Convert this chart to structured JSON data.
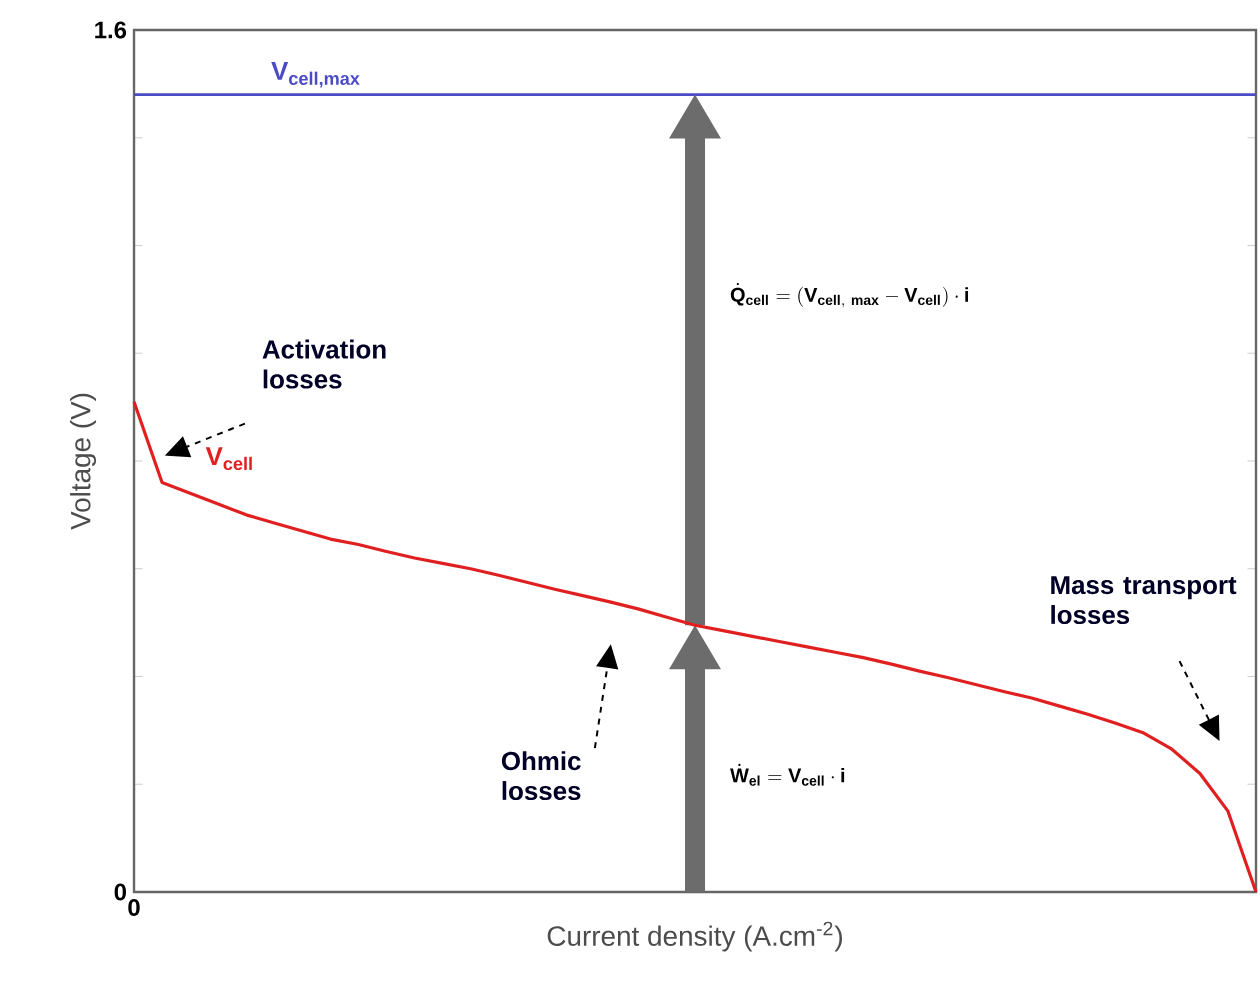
{
  "chart_data": {
    "type": "line",
    "xlabel": "Current density (A.cm$^{-2}$)",
    "ylabel": "Voltage (V)",
    "categories": [
      "0",
      null,
      null,
      null,
      null,
      null,
      null,
      null,
      null,
      null,
      null,
      null,
      null,
      null,
      null,
      null,
      null,
      null,
      null,
      null,
      null,
      null,
      null,
      null,
      null,
      null,
      null,
      null,
      null,
      null,
      null,
      null,
      null,
      null,
      null,
      null,
      null,
      null,
      null,
      null,
      null
    ],
    "ylim": [
      0,
      1.6
    ],
    "yticks": [
      0,
      {
        "value": 0.2,
        "label": null
      },
      {
        "value": 0.4,
        "label": null
      },
      {
        "value": 0.6,
        "label": null
      },
      {
        "value": 0.8,
        "label": null
      },
      {
        "value": 1.0,
        "label": null
      },
      {
        "value": 1.2,
        "label": null
      },
      {
        "value": 1.4,
        "label": null
      },
      1.6
    ],
    "series": [
      {
        "name": "V$_{cell}$",
        "color": "#e02020",
        "values": [
          0.91,
          0.76,
          0.74,
          0.72,
          0.7,
          0.685,
          0.67,
          0.655,
          0.645,
          0.632,
          0.62,
          0.61,
          0.6,
          0.588,
          0.575,
          0.562,
          0.55,
          0.538,
          0.525,
          0.51,
          0.495,
          0.485,
          0.475,
          0.465,
          0.455,
          0.445,
          0.435,
          0.423,
          0.41,
          0.398,
          0.385,
          0.372,
          0.36,
          0.345,
          0.33,
          0.313,
          0.295,
          0.265,
          0.22,
          0.15,
          0
        ]
      }
    ],
    "ref_lines": [
      {
        "axis": "y",
        "value": 1.48,
        "label": "V$_{cell,max}$",
        "color": "#4b4bc8"
      }
    ],
    "annotations": [
      "Activation losses",
      "Ohmic losses",
      "Mass transport losses",
      "\\dot{\\mathbf{Q}}_{\\mathbf{cell}} = (\\mathbf{V}_{\\mathbf{cell,\\ max}} - \\mathbf{V}_{\\mathbf{cell}}) \\cdot \\mathbf{i}",
      "\\dot{\\mathbf{W}}_{\\mathbf{el}} = \\mathbf{V}_{\\mathbf{cell}} \\cdot \\mathbf{i}"
    ],
    "grid": false,
    "marker": "none",
    "line_style": "solid"
  }
}
